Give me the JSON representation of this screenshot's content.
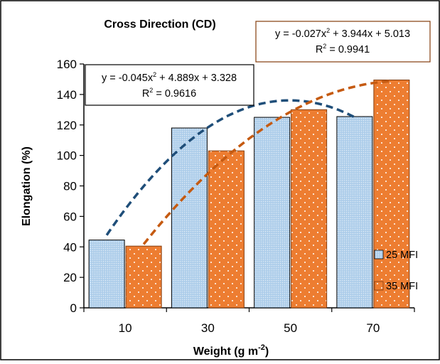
{
  "chart_data": {
    "type": "bar",
    "title": "Cross Direction (CD)",
    "xlabel": "Weight (g m",
    "xlabel_sup": "-2",
    "xlabel_close": ")",
    "ylabel": "Elongation (%)",
    "categories": [
      "10",
      "30",
      "50",
      "70"
    ],
    "ylim": [
      0,
      160
    ],
    "yticks": [
      0,
      20,
      40,
      60,
      80,
      100,
      120,
      140,
      160
    ],
    "grid": false,
    "legend_position": "right",
    "series": [
      {
        "name": "25 MFI",
        "values": [
          44.5,
          118,
          125,
          125.5
        ],
        "fill": "#BDD7EE",
        "pattern": "dotted-checker",
        "trendline": {
          "type": "poly2",
          "a": -0.045,
          "b": 4.889,
          "c": 3.328,
          "color": "#1F4E79",
          "equation": "y = -0.045x",
          "equation_sup": "2",
          "equation_rest": " + 4.889x + 3.328",
          "r2_prefix": "R",
          "r2_sup": "2",
          "r2_value": " = 0.9616",
          "box_color": "#000000"
        }
      },
      {
        "name": "35 MFI",
        "values": [
          40.5,
          103,
          130,
          149.5
        ],
        "fill": "#ED7D31",
        "pattern": "white-dots",
        "trendline": {
          "type": "poly2",
          "a": -0.027,
          "b": 3.944,
          "c": 5.013,
          "color": "#C55A11",
          "equation": "y = -0.027x",
          "equation_sup": "2",
          "equation_rest": " + 3.944x + 5.013",
          "r2_prefix": "R",
          "r2_sup": "2",
          "r2_value": " = 0.9941",
          "box_color": "#843C0C"
        }
      }
    ]
  }
}
